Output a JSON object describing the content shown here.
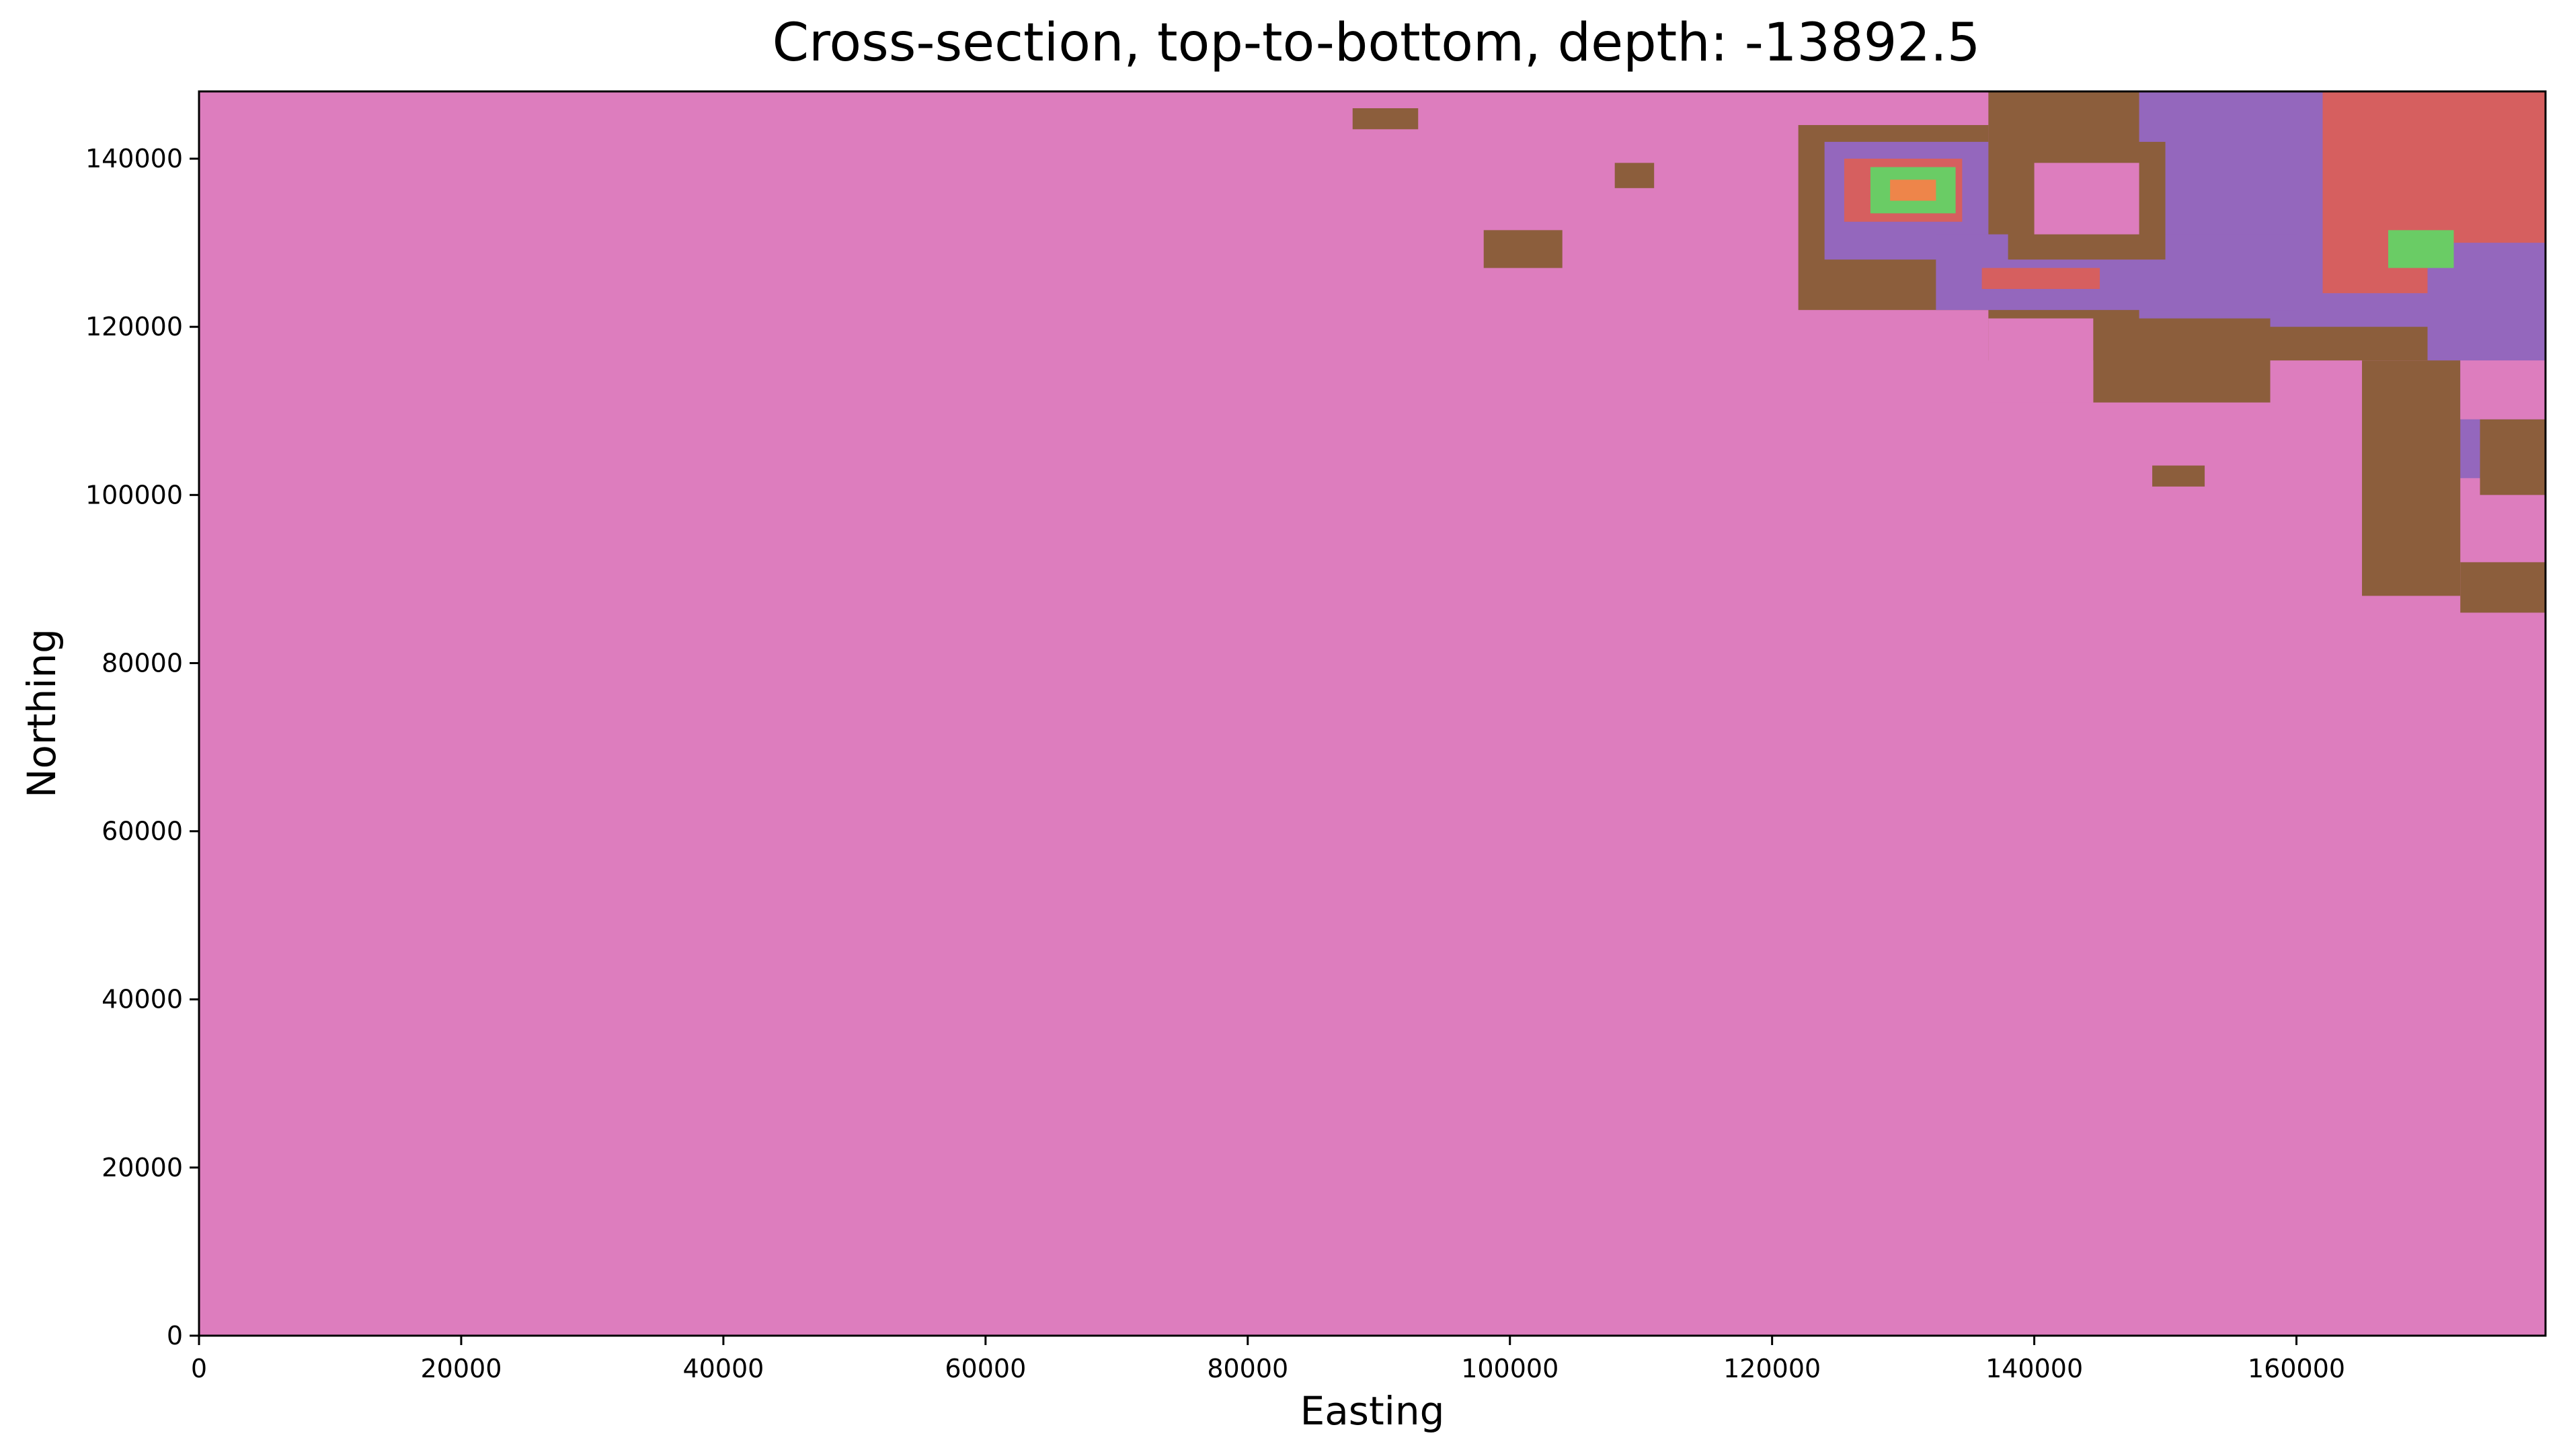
{
  "chart_data": {
    "type": "heatmap",
    "title": "Cross-section, top-to-bottom, depth: -13892.5",
    "xlabel": "Easting",
    "ylabel": "Northing",
    "xlim": [
      0,
      179000
    ],
    "ylim": [
      0,
      148000
    ],
    "xticks": [
      0,
      20000,
      40000,
      60000,
      80000,
      100000,
      120000,
      140000,
      160000
    ],
    "yticks": [
      0,
      20000,
      40000,
      60000,
      80000,
      100000,
      120000,
      140000
    ],
    "grid": false,
    "colors": {
      "background_unit": "#dd7dbe",
      "brown_unit": "#8c5e3c",
      "purple_unit": "#9467bd",
      "red_unit": "#d65f5f",
      "green_unit": "#6acc65",
      "orange_unit": "#ee854a"
    },
    "regions": [
      {
        "name": "background",
        "color": "background_unit",
        "x": [
          0,
          179000
        ],
        "y": [
          0,
          148000
        ]
      },
      {
        "name": "brown-block-upper-right",
        "color": "brown_unit",
        "x": [
          136500,
          179000
        ],
        "y": [
          116000,
          148000
        ]
      },
      {
        "name": "purple-upper-right",
        "color": "purple_unit",
        "x": [
          148000,
          179000
        ],
        "y": [
          120000,
          148000
        ]
      },
      {
        "name": "red-upper-right",
        "color": "red_unit",
        "x": [
          162000,
          179000
        ],
        "y": [
          124000,
          148000
        ]
      },
      {
        "name": "purple-right-lobe",
        "color": "purple_unit",
        "x": [
          170000,
          179000
        ],
        "y": [
          102000,
          130000
        ]
      },
      {
        "name": "brown-right-arm",
        "color": "brown_unit",
        "x": [
          165000,
          172500
        ],
        "y": [
          88000,
          116000
        ]
      },
      {
        "name": "brown-right-foot",
        "color": "brown_unit",
        "x": [
          172500,
          179000
        ],
        "y": [
          86000,
          92000
        ]
      },
      {
        "name": "brown-right-band",
        "color": "brown_unit",
        "x": [
          174000,
          179000
        ],
        "y": [
          100000,
          109000
        ]
      },
      {
        "name": "pink-hole-right",
        "color": "background_unit",
        "x": [
          172500,
          179000
        ],
        "y": [
          109000,
          116000
        ]
      },
      {
        "name": "green-right",
        "color": "green_unit",
        "x": [
          167000,
          172000
        ],
        "y": [
          127000,
          131500
        ]
      },
      {
        "name": "brown-ring-outer",
        "color": "brown_unit",
        "x": [
          122000,
          136500
        ],
        "y": [
          122000,
          144000
        ]
      },
      {
        "name": "purple-ring",
        "color": "purple_unit",
        "x": [
          124000,
          136500
        ],
        "y": [
          128000,
          142000
        ]
      },
      {
        "name": "red-ring",
        "color": "red_unit",
        "x": [
          125500,
          134500
        ],
        "y": [
          132500,
          140000
        ]
      },
      {
        "name": "green-core",
        "color": "green_unit",
        "x": [
          127500,
          134000
        ],
        "y": [
          133500,
          139000
        ]
      },
      {
        "name": "orange-core",
        "color": "orange_unit",
        "x": [
          129000,
          132500
        ],
        "y": [
          135000,
          137500
        ]
      },
      {
        "name": "purple-band-middle",
        "color": "purple_unit",
        "x": [
          132500,
          160000
        ],
        "y": [
          122000,
          131000
        ]
      },
      {
        "name": "brown-loop",
        "color": "brown_unit",
        "x": [
          138000,
          150000
        ],
        "y": [
          128000,
          142000
        ]
      },
      {
        "name": "pink-hole-loop",
        "color": "background_unit",
        "x": [
          140000,
          148000
        ],
        "y": [
          131000,
          139500
        ]
      },
      {
        "name": "red-stripe-middle",
        "color": "red_unit",
        "x": [
          136000,
          145000
        ],
        "y": [
          124500,
          127000
        ]
      },
      {
        "name": "brown-tongue",
        "color": "brown_unit",
        "x": [
          144500,
          158000
        ],
        "y": [
          111000,
          121000
        ]
      },
      {
        "name": "pink-below-tongue",
        "color": "background_unit",
        "x": [
          136500,
          144500
        ],
        "y": [
          111000,
          121000
        ]
      },
      {
        "name": "brown-fleck-top",
        "color": "brown_unit",
        "x": [
          88000,
          93000
        ],
        "y": [
          143500,
          146000
        ]
      },
      {
        "name": "brown-fleck-small",
        "color": "brown_unit",
        "x": [
          108000,
          111000
        ],
        "y": [
          136500,
          139500
        ]
      },
      {
        "name": "brown-fleck-mid",
        "color": "brown_unit",
        "x": [
          98000,
          104000
        ],
        "y": [
          127000,
          131500
        ]
      },
      {
        "name": "brown-fleck-low",
        "color": "brown_unit",
        "x": [
          149000,
          153000
        ],
        "y": [
          101000,
          103500
        ]
      }
    ]
  }
}
